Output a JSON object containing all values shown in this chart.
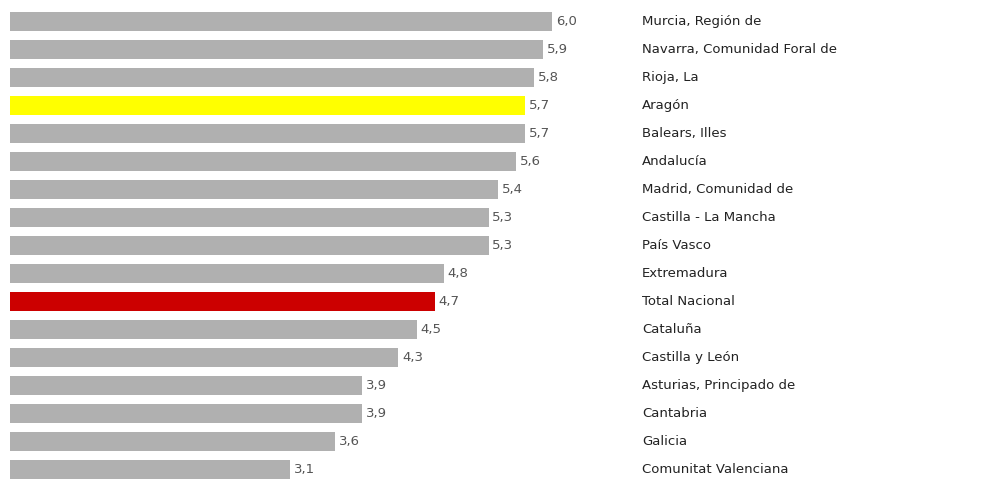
{
  "categories": [
    "Murcia, Región de",
    "Navarra, Comunidad Foral de",
    "Rioja, La",
    "Aragón",
    "Balears, Illes",
    "Andalucía",
    "Madrid, Comunidad de",
    "Castilla - La Mancha",
    "País Vasco",
    "Extremadura",
    "Total Nacional",
    "Cataluña",
    "Castilla y León",
    "Asturias, Principado de",
    "Cantabria",
    "Galicia",
    "Comunitat Valenciana"
  ],
  "values": [
    6.0,
    5.9,
    5.8,
    5.7,
    5.7,
    5.6,
    5.4,
    5.3,
    5.3,
    4.8,
    4.7,
    4.5,
    4.3,
    3.9,
    3.9,
    3.6,
    3.1
  ],
  "bar_colors": [
    "#b0b0b0",
    "#b0b0b0",
    "#b0b0b0",
    "#ffff00",
    "#b0b0b0",
    "#b0b0b0",
    "#b0b0b0",
    "#b0b0b0",
    "#b0b0b0",
    "#b0b0b0",
    "#cc0000",
    "#b0b0b0",
    "#b0b0b0",
    "#b0b0b0",
    "#b0b0b0",
    "#b0b0b0",
    "#b0b0b0"
  ],
  "label_color": "#555555",
  "region_label_color": "#222222",
  "background_color": "#ffffff",
  "bar_height": 0.68,
  "xlim": [
    0,
    6.8
  ],
  "value_fontsize": 9.5,
  "label_fontsize": 9.5
}
